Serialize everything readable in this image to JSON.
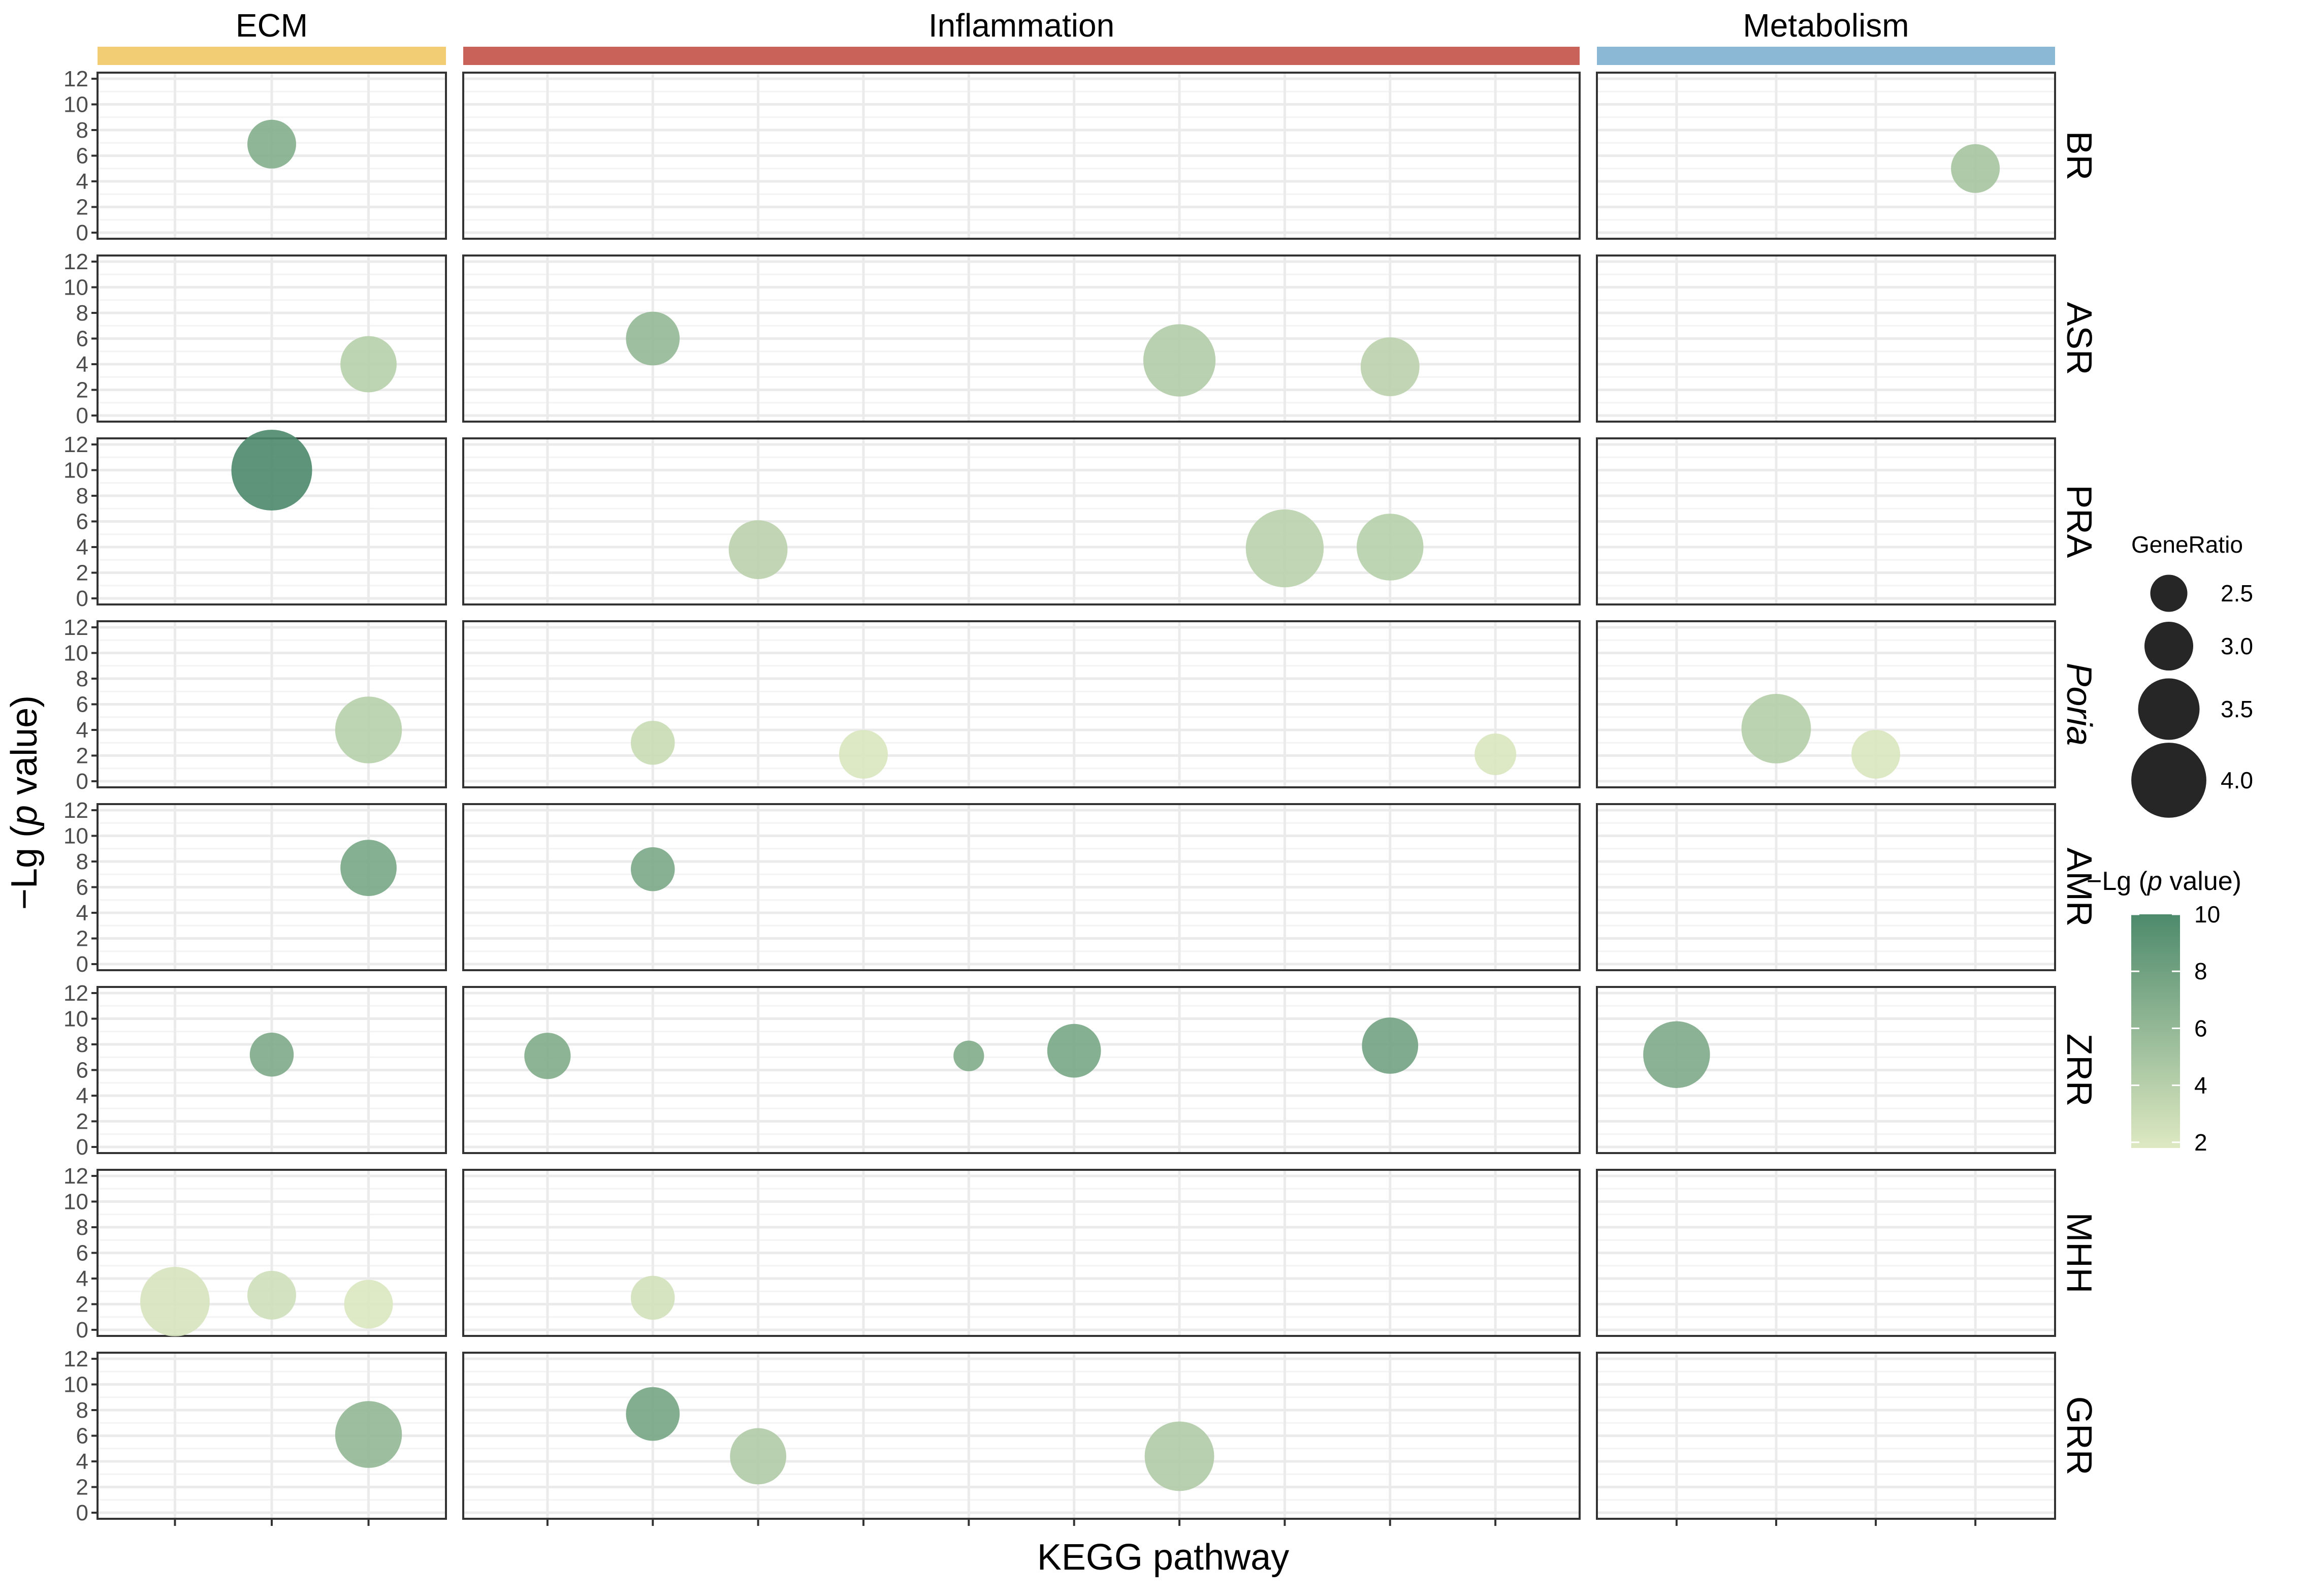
{
  "chart_data": {
    "type": "scatter",
    "subtype": "faceted bubble chart",
    "xlabel": "KEGG pathway",
    "ylabel": {
      "prefix": "−Lg (",
      "italic": "p",
      "suffix": " value)"
    },
    "ylim": [
      0,
      12
    ],
    "y_ticks": [
      "0",
      "2",
      "4",
      "6",
      "8",
      "10",
      "12"
    ],
    "columns": [
      {
        "name": "ECM",
        "color": "#f2cd73",
        "n_pathways": 3
      },
      {
        "name": "Inflammation",
        "color": "#c9635a",
        "n_pathways": 10
      },
      {
        "name": "Metabolism",
        "color": "#8ab8d5",
        "n_pathways": 4
      }
    ],
    "rows": [
      {
        "name": "BR",
        "italic": false
      },
      {
        "name": "ASR",
        "italic": false
      },
      {
        "name": "PRA",
        "italic": false
      },
      {
        "name": "Poria",
        "italic": true
      },
      {
        "name": "AMR",
        "italic": false
      },
      {
        "name": "ZRR",
        "italic": false
      },
      {
        "name": "MHH",
        "italic": false
      },
      {
        "name": "GRR",
        "italic": false
      }
    ],
    "points": [
      {
        "row": "BR",
        "group": "ECM",
        "pathway": 2,
        "neglog_p": 6.9,
        "gene_ratio": 3.0
      },
      {
        "row": "BR",
        "group": "Metabolism",
        "pathway": 4,
        "neglog_p": 5.0,
        "gene_ratio": 3.0
      },
      {
        "row": "ASR",
        "group": "ECM",
        "pathway": 3,
        "neglog_p": 4.0,
        "gene_ratio": 3.3
      },
      {
        "row": "ASR",
        "group": "Inflammation",
        "pathway": 2,
        "neglog_p": 6.0,
        "gene_ratio": 3.2
      },
      {
        "row": "ASR",
        "group": "Inflammation",
        "pathway": 7,
        "neglog_p": 4.3,
        "gene_ratio": 3.9
      },
      {
        "row": "ASR",
        "group": "Inflammation",
        "pathway": 9,
        "neglog_p": 3.8,
        "gene_ratio": 3.4
      },
      {
        "row": "PRA",
        "group": "ECM",
        "pathway": 2,
        "neglog_p": 10.0,
        "gene_ratio": 4.2
      },
      {
        "row": "PRA",
        "group": "Inflammation",
        "pathway": 3,
        "neglog_p": 3.8,
        "gene_ratio": 3.4
      },
      {
        "row": "PRA",
        "group": "Inflammation",
        "pathway": 8,
        "neglog_p": 3.9,
        "gene_ratio": 4.1
      },
      {
        "row": "PRA",
        "group": "Inflammation",
        "pathway": 9,
        "neglog_p": 4.0,
        "gene_ratio": 3.7
      },
      {
        "row": "Poria",
        "group": "ECM",
        "pathway": 3,
        "neglog_p": 4.0,
        "gene_ratio": 3.7
      },
      {
        "row": "Poria",
        "group": "Inflammation",
        "pathway": 2,
        "neglog_p": 3.0,
        "gene_ratio": 2.8
      },
      {
        "row": "Poria",
        "group": "Inflammation",
        "pathway": 4,
        "neglog_p": 2.1,
        "gene_ratio": 3.0
      },
      {
        "row": "Poria",
        "group": "Inflammation",
        "pathway": 10,
        "neglog_p": 2.1,
        "gene_ratio": 2.7
      },
      {
        "row": "Poria",
        "group": "Metabolism",
        "pathway": 2,
        "neglog_p": 4.1,
        "gene_ratio": 3.8
      },
      {
        "row": "Poria",
        "group": "Metabolism",
        "pathway": 3,
        "neglog_p": 2.1,
        "gene_ratio": 3.0
      },
      {
        "row": "AMR",
        "group": "ECM",
        "pathway": 3,
        "neglog_p": 7.5,
        "gene_ratio": 3.3
      },
      {
        "row": "AMR",
        "group": "Inflammation",
        "pathway": 2,
        "neglog_p": 7.4,
        "gene_ratio": 2.8
      },
      {
        "row": "ZRR",
        "group": "ECM",
        "pathway": 2,
        "neglog_p": 7.2,
        "gene_ratio": 2.8
      },
      {
        "row": "ZRR",
        "group": "Inflammation",
        "pathway": 1,
        "neglog_p": 7.1,
        "gene_ratio": 2.9
      },
      {
        "row": "ZRR",
        "group": "Inflammation",
        "pathway": 5,
        "neglog_p": 7.1,
        "gene_ratio": 2.2
      },
      {
        "row": "ZRR",
        "group": "Inflammation",
        "pathway": 6,
        "neglog_p": 7.5,
        "gene_ratio": 3.2
      },
      {
        "row": "ZRR",
        "group": "Inflammation",
        "pathway": 9,
        "neglog_p": 7.9,
        "gene_ratio": 3.3
      },
      {
        "row": "ZRR",
        "group": "Metabolism",
        "pathway": 1,
        "neglog_p": 7.2,
        "gene_ratio": 3.7
      },
      {
        "row": "MHH",
        "group": "ECM",
        "pathway": 1,
        "neglog_p": 2.2,
        "gene_ratio": 3.8
      },
      {
        "row": "MHH",
        "group": "ECM",
        "pathway": 2,
        "neglog_p": 2.7,
        "gene_ratio": 3.0
      },
      {
        "row": "MHH",
        "group": "ECM",
        "pathway": 3,
        "neglog_p": 2.0,
        "gene_ratio": 3.0
      },
      {
        "row": "MHH",
        "group": "Inflammation",
        "pathway": 2,
        "neglog_p": 2.5,
        "gene_ratio": 2.8
      },
      {
        "row": "GRR",
        "group": "ECM",
        "pathway": 3,
        "neglog_p": 6.1,
        "gene_ratio": 3.7
      },
      {
        "row": "GRR",
        "group": "Inflammation",
        "pathway": 2,
        "neglog_p": 7.7,
        "gene_ratio": 3.2
      },
      {
        "row": "GRR",
        "group": "Inflammation",
        "pathway": 3,
        "neglog_p": 4.4,
        "gene_ratio": 3.3
      },
      {
        "row": "GRR",
        "group": "Inflammation",
        "pathway": 7,
        "neglog_p": 4.4,
        "gene_ratio": 3.8
      }
    ],
    "legend_size": {
      "title": "GeneRatio",
      "entries": [
        {
          "label": "2.5",
          "value": 2.5
        },
        {
          "label": "3.0",
          "value": 3.0
        },
        {
          "label": "3.5",
          "value": 3.5
        },
        {
          "label": "4.0",
          "value": 4.0
        }
      ],
      "placement": "right"
    },
    "legend_color": {
      "title": {
        "prefix": "−Lg (",
        "italic": "p",
        "suffix": " value)"
      },
      "low_color": "#dee9c2",
      "high_color": "#4d8a6c",
      "min": 1.8,
      "max": 10,
      "ticks": [
        "2",
        "4",
        "6",
        "8",
        "10"
      ],
      "placement": "right"
    },
    "colors": {
      "panel_border": "#333333",
      "grid_major": "#ebebeb",
      "grid_minor": "#f4f4f4",
      "size_legend_fill": "#262626"
    }
  }
}
